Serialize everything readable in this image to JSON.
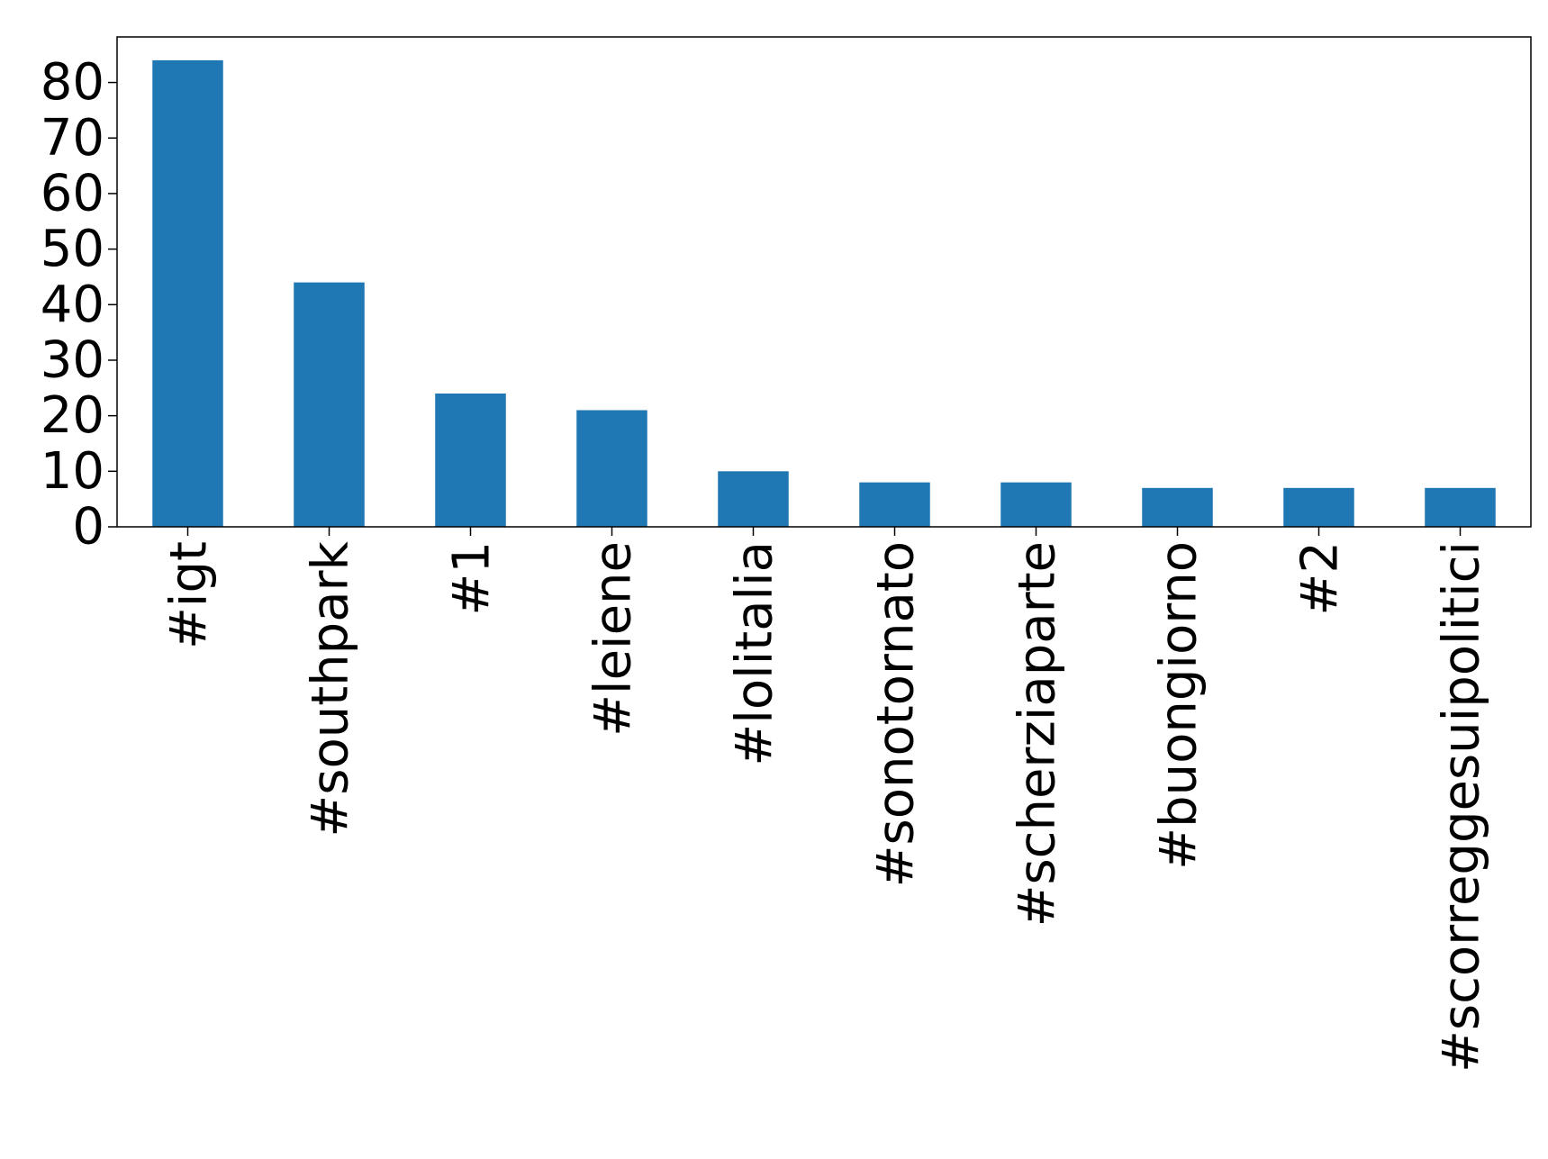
{
  "chart_data": {
    "type": "bar",
    "title": "",
    "xlabel": "",
    "ylabel": "",
    "categories": [
      "#igt",
      "#southpark",
      "#1",
      "#leiene",
      "#lolitalia",
      "#sonotornato",
      "#scherziaparte",
      "#buongiorno",
      "#2",
      "#scorreggesuipolitici"
    ],
    "values": [
      84,
      44,
      24,
      21,
      10,
      8,
      8,
      7,
      7,
      7
    ],
    "ylim": [
      0,
      88.2
    ],
    "yticks": [
      0,
      10,
      20,
      30,
      40,
      50,
      60,
      70,
      80
    ],
    "grid": false,
    "legend": "none",
    "bar_color": "#1f77b4"
  }
}
